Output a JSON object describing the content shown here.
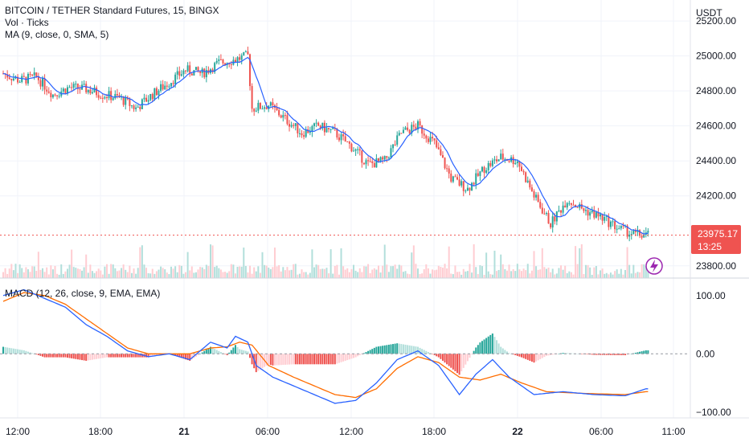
{
  "header": {
    "title": "BITCOIN / TETHER Standard Futures, 15, BINGX",
    "volume_label": "Vol · Ticks",
    "ma_label": "MA (9, close, 0, SMA, 5)",
    "macd_label": "MACD (12, 26, close, 9, EMA, EMA)",
    "currency": "USDT"
  },
  "price_badge": {
    "price": "23975.17",
    "countdown": "13:25"
  },
  "colors": {
    "up": "#26a69a",
    "down": "#ef5350",
    "ma": "#2962ff",
    "macd": "#2962ff",
    "signal": "#ff6d00",
    "grid": "#f0f3fa",
    "up_light": "#b2dfdb",
    "down_light": "#ffcdd2"
  },
  "chart_data": [
    {
      "type": "candlestick",
      "title": "BITCOIN / TETHER Standard Futures, 15, BINGX",
      "ylabel": "USDT",
      "y_ticks": [
        25200,
        25000,
        24800,
        24600,
        24400,
        24200,
        23800
      ],
      "ylim": [
        23730,
        25320
      ],
      "x_ticks": [
        "12:00",
        "18:00",
        "21",
        "06:00",
        "12:00",
        "18:00",
        "22",
        "06:00",
        "11:00"
      ],
      "last_price": 23975.17,
      "ma_series_name": "MA (9, close, 0, SMA, 5)",
      "close_path_anchors": [
        [
          0,
          24900
        ],
        [
          8,
          24860
        ],
        [
          16,
          24880
        ],
        [
          24,
          24780
        ],
        [
          32,
          24820
        ],
        [
          40,
          24810
        ],
        [
          48,
          24780
        ],
        [
          56,
          24760
        ],
        [
          64,
          24700
        ],
        [
          72,
          24780
        ],
        [
          80,
          24850
        ],
        [
          88,
          24920
        ],
        [
          96,
          24900
        ],
        [
          104,
          24960
        ],
        [
          112,
          24980
        ],
        [
          118,
          25000
        ],
        [
          120,
          24700
        ],
        [
          128,
          24720
        ],
        [
          136,
          24640
        ],
        [
          144,
          24560
        ],
        [
          152,
          24600
        ],
        [
          160,
          24560
        ],
        [
          168,
          24480
        ],
        [
          176,
          24380
        ],
        [
          184,
          24400
        ],
        [
          192,
          24560
        ],
        [
          200,
          24600
        ],
        [
          208,
          24500
        ],
        [
          216,
          24300
        ],
        [
          224,
          24240
        ],
        [
          232,
          24360
        ],
        [
          240,
          24420
        ],
        [
          248,
          24400
        ],
        [
          256,
          24200
        ],
        [
          264,
          24040
        ],
        [
          272,
          24180
        ],
        [
          280,
          24120
        ],
        [
          288,
          24080
        ],
        [
          296,
          24020
        ],
        [
          304,
          23980
        ],
        [
          310,
          23975
        ]
      ],
      "volume_series_name": "Vol · Ticks"
    },
    {
      "type": "line",
      "title": "MACD (12, 26, close, 9, EMA, EMA)",
      "y_ticks": [
        100,
        0,
        -100
      ],
      "ylim": [
        -110,
        130
      ],
      "series": [
        {
          "name": "MACD",
          "anchors": [
            [
              0,
              100
            ],
            [
              10,
              110
            ],
            [
              20,
              95
            ],
            [
              30,
              80
            ],
            [
              40,
              50
            ],
            [
              50,
              30
            ],
            [
              60,
              5
            ],
            [
              70,
              -5
            ],
            [
              80,
              0
            ],
            [
              90,
              -10
            ],
            [
              100,
              20
            ],
            [
              108,
              10
            ],
            [
              112,
              30
            ],
            [
              118,
              20
            ],
            [
              122,
              -20
            ],
            [
              130,
              -40
            ],
            [
              140,
              -55
            ],
            [
              150,
              -70
            ],
            [
              160,
              -85
            ],
            [
              170,
              -80
            ],
            [
              180,
              -50
            ],
            [
              190,
              -10
            ],
            [
              200,
              5
            ],
            [
              210,
              -20
            ],
            [
              220,
              -70
            ],
            [
              228,
              -35
            ],
            [
              236,
              -10
            ],
            [
              244,
              -40
            ],
            [
              256,
              -70
            ],
            [
              270,
              -65
            ],
            [
              285,
              -70
            ],
            [
              300,
              -72
            ],
            [
              310,
              -60
            ]
          ]
        },
        {
          "name": "Signal",
          "anchors": [
            [
              0,
              90
            ],
            [
              10,
              105
            ],
            [
              20,
              100
            ],
            [
              30,
              85
            ],
            [
              40,
              60
            ],
            [
              50,
              35
            ],
            [
              60,
              10
            ],
            [
              70,
              0
            ],
            [
              80,
              0
            ],
            [
              90,
              0
            ],
            [
              100,
              10
            ],
            [
              108,
              12
            ],
            [
              114,
              20
            ],
            [
              120,
              15
            ],
            [
              128,
              -20
            ],
            [
              140,
              -40
            ],
            [
              150,
              -55
            ],
            [
              160,
              -70
            ],
            [
              170,
              -75
            ],
            [
              180,
              -60
            ],
            [
              190,
              -25
            ],
            [
              200,
              -5
            ],
            [
              210,
              -15
            ],
            [
              220,
              -40
            ],
            [
              230,
              -45
            ],
            [
              240,
              -35
            ],
            [
              250,
              -50
            ],
            [
              262,
              -65
            ],
            [
              280,
              -68
            ],
            [
              300,
              -70
            ],
            [
              310,
              -65
            ]
          ]
        }
      ]
    }
  ]
}
